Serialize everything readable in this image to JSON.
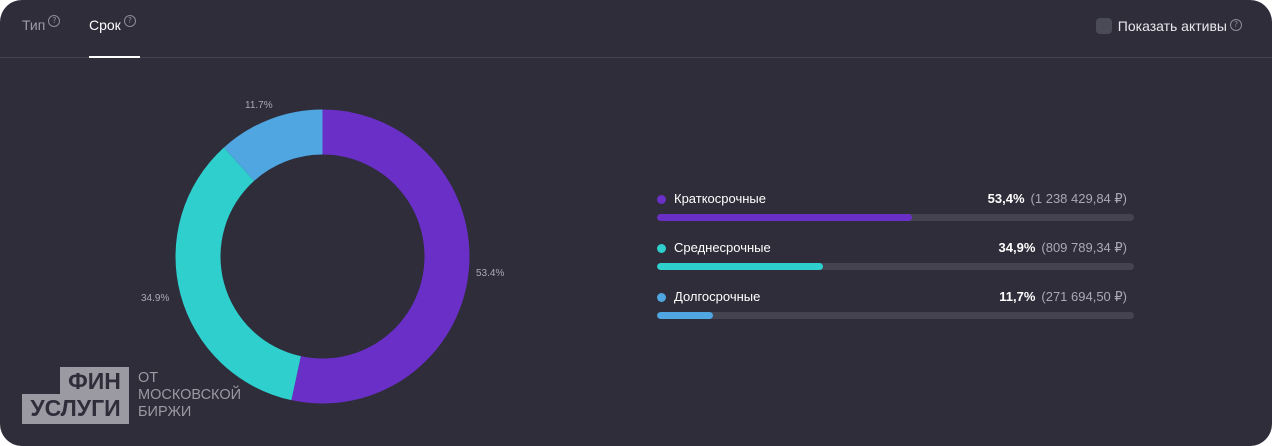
{
  "tabs": [
    {
      "label": "Тип",
      "active": false
    },
    {
      "label": "Срок",
      "active": true
    }
  ],
  "help_glyph": "?",
  "show_assets_label": "Показать активы",
  "chart_data": {
    "type": "pie",
    "style": "donut",
    "categories": [
      "Краткосрочные",
      "Среднесрочные",
      "Долгосрочные"
    ],
    "values": [
      53.4,
      34.9,
      11.7
    ],
    "labels": [
      "53.4%",
      "34.9%",
      "11.7%"
    ],
    "colors": [
      "#6a2fc7",
      "#2ecfcd",
      "#4fa6e0"
    ]
  },
  "legend": [
    {
      "name": "Краткосрочные",
      "percent": "53,4%",
      "amount": "(1 238 429,84 ₽)",
      "share": 53.4,
      "color": "#6a2fc7"
    },
    {
      "name": "Среднесрочные",
      "percent": "34,9%",
      "amount": "(809 789,34 ₽)",
      "share": 34.9,
      "color": "#2ecfcd"
    },
    {
      "name": "Долгосрочные",
      "percent": "11,7%",
      "amount": "(271 694,50 ₽)",
      "share": 11.7,
      "color": "#4fa6e0"
    }
  ],
  "watermark": {
    "line1": "ФИН",
    "line2": "УСЛУГИ",
    "sub1": "ОТ",
    "sub2": "МОСКОВСКОЙ",
    "sub3": "БИРЖИ"
  }
}
